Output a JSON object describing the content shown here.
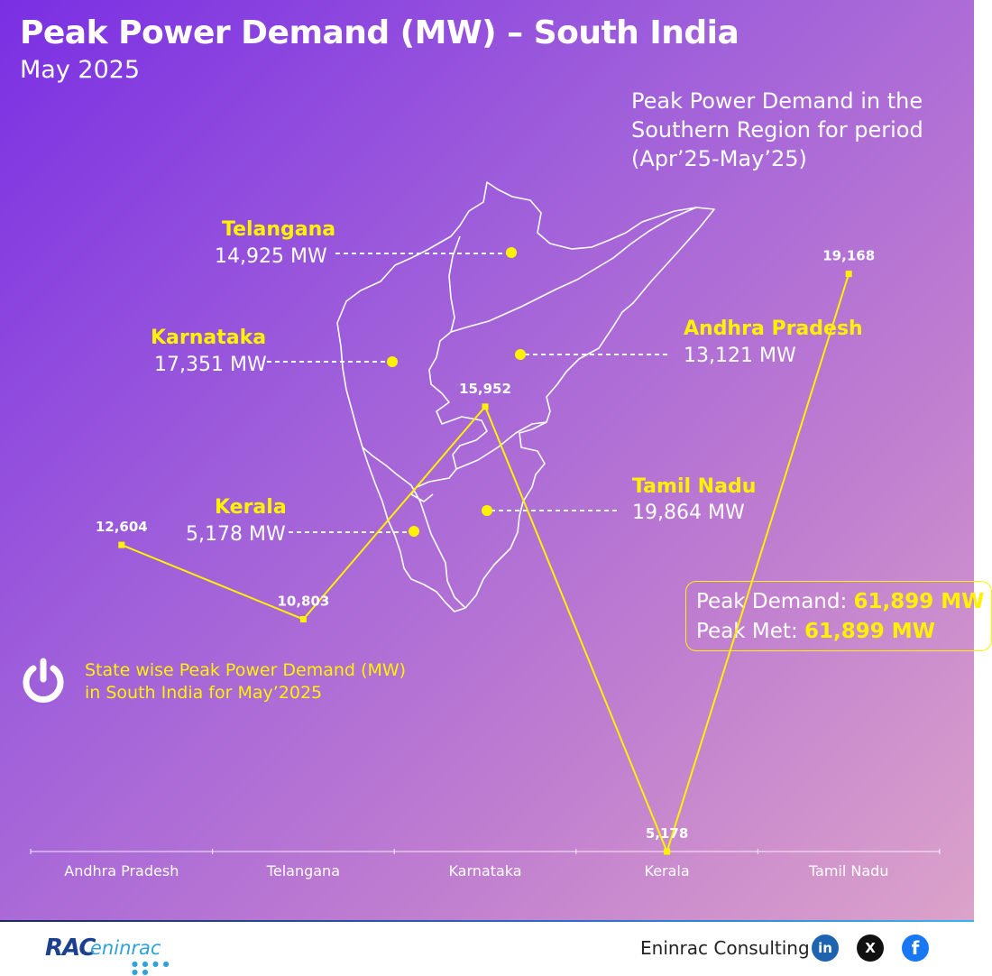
{
  "header": {
    "title": "Peak Power Demand (MW) – South India",
    "subtitle": "May 2025"
  },
  "map_note": "Peak Power Demand in the Southern Region for period (Apr’25-May’25)",
  "map_states": [
    {
      "name": "Telangana",
      "value": "14,925 MW"
    },
    {
      "name": "Karnataka",
      "value": "17,351 MW"
    },
    {
      "name": "Andhra Pradesh",
      "value": "13,121 MW"
    },
    {
      "name": "Tamil Nadu",
      "value": "19,864 MW"
    },
    {
      "name": "Kerala",
      "value": "5,178 MW"
    }
  ],
  "summary": {
    "peak_demand_label": "Peak Demand: ",
    "peak_demand_value": "61,899 MW",
    "peak_met_label": "Peak Met: ",
    "peak_met_value": "61,899 MW"
  },
  "chart_heading": {
    "line1": "State wise Peak Power Demand (MW)",
    "line2": "in South India for May’2025"
  },
  "chart_data": {
    "type": "line",
    "categories": [
      "Andhra Pradesh",
      "Telangana",
      "Karnataka",
      "Kerala",
      "Tamil Nadu"
    ],
    "values": [
      12604,
      10803,
      15952,
      5178,
      19168
    ],
    "data_labels": [
      "12,604",
      "10,803",
      "15,952",
      "5,178",
      "19,168"
    ],
    "title": "State wise Peak Power Demand (MW) in South India for May’2025",
    "xlabel": "",
    "ylabel": "",
    "grid": false,
    "line_color": "#fff200"
  },
  "footer": {
    "logo_rac": "RAC",
    "logo_eninrac": "eninrac",
    "company": "Eninrac Consulting",
    "social": [
      {
        "name": "linkedin-icon",
        "glyph": "in"
      },
      {
        "name": "x-icon",
        "glyph": "X"
      },
      {
        "name": "facebook-icon",
        "glyph": "f"
      }
    ]
  },
  "colors": {
    "accent_yellow": "#fff200",
    "background_start": "#7a2fe3",
    "background_end": "#dea6c9"
  }
}
